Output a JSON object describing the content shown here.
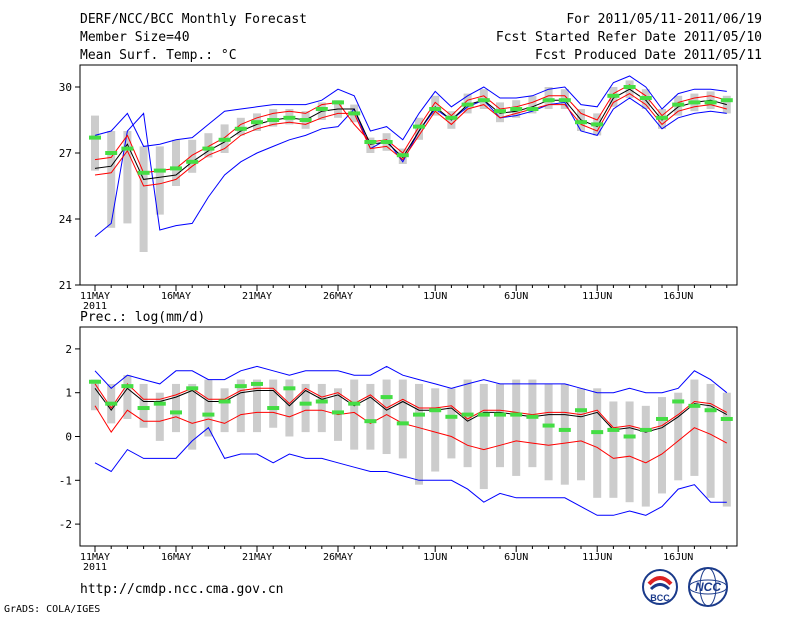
{
  "header": {
    "left": [
      "DERF/NCC/BCC Monthly Forecast",
      "Member Size=40",
      "Mean Surf. Temp.: °C"
    ],
    "right": [
      "For 2011/05/11-2011/06/19",
      "Fcst Started Refer Date 2011/05/10",
      "Fcst Produced Date 2011/05/11"
    ]
  },
  "precip_title": "Prec.: log(mm/d)",
  "url": "http://cmdp.ncc.cma.gov.cn",
  "footer": "GrADS: COLA/IGES",
  "logos": {
    "bcc": "BCC",
    "ncc": "NCC"
  },
  "colors": {
    "mean": "#000000",
    "percentile": "#ff0000",
    "extreme": "#0000ff",
    "box": "#cccccc",
    "marker": "#44dd44"
  },
  "chart_data": [
    {
      "type": "line",
      "title": "Mean Surf. Temp.: °C",
      "x": [
        "2011-05-11",
        "2011-05-12",
        "2011-05-13",
        "2011-05-14",
        "2011-05-15",
        "2011-05-16",
        "2011-05-17",
        "2011-05-18",
        "2011-05-19",
        "2011-05-20",
        "2011-05-21",
        "2011-05-22",
        "2011-05-23",
        "2011-05-24",
        "2011-05-25",
        "2011-05-26",
        "2011-05-27",
        "2011-05-28",
        "2011-05-29",
        "2011-05-30",
        "2011-05-31",
        "2011-06-01",
        "2011-06-02",
        "2011-06-03",
        "2011-06-04",
        "2011-06-05",
        "2011-06-06",
        "2011-06-07",
        "2011-06-08",
        "2011-06-09",
        "2011-06-10",
        "2011-06-11",
        "2011-06-12",
        "2011-06-13",
        "2011-06-14",
        "2011-06-15",
        "2011-06-16",
        "2011-06-17",
        "2011-06-18",
        "2011-06-19"
      ],
      "xticks": [
        "11MAY",
        "16MAY",
        "21MAY",
        "26MAY",
        "1JUN",
        "6JUN",
        "11JUN",
        "16JUN"
      ],
      "xtick_index": [
        0,
        5,
        10,
        15,
        21,
        26,
        31,
        36
      ],
      "year_label": "2011",
      "ylim": [
        21,
        31
      ],
      "yticks": [
        21,
        24,
        27,
        30
      ],
      "series": [
        {
          "name": "max",
          "color": "#0000ff",
          "values": [
            23.2,
            23.8,
            28.0,
            28.8,
            23.5,
            23.7,
            23.8,
            25.0,
            26.0,
            26.6,
            27.0,
            27.3,
            27.6,
            27.8,
            28.1,
            28.2,
            29.0,
            27.2,
            27.6,
            26.6,
            28.0,
            29.0,
            28.5,
            29.1,
            29.4,
            28.6,
            28.7,
            28.9,
            29.2,
            29.3,
            28.0,
            27.8,
            29.0,
            29.5,
            29.0,
            28.1,
            28.6,
            28.8,
            28.9,
            28.8
          ]
        },
        {
          "name": "min_env",
          "color": "#0000ff",
          "values": [
            27.8,
            28.0,
            28.8,
            27.3,
            27.4,
            27.6,
            27.7,
            28.3,
            28.9,
            29.0,
            29.1,
            29.2,
            29.2,
            29.2,
            29.4,
            29.9,
            29.6,
            28.0,
            28.2,
            27.6,
            28.8,
            29.8,
            29.1,
            29.6,
            30.0,
            29.5,
            29.5,
            29.6,
            29.9,
            30.0,
            29.2,
            29.1,
            30.2,
            30.5,
            30.0,
            29.0,
            29.7,
            29.9,
            29.9,
            29.8
          ]
        },
        {
          "name": "p_hi",
          "color": "#ff0000",
          "values": [
            26.7,
            26.8,
            27.8,
            26.1,
            26.2,
            26.3,
            26.9,
            27.3,
            27.7,
            28.3,
            28.6,
            28.8,
            28.9,
            28.8,
            29.2,
            29.3,
            28.3,
            27.5,
            27.6,
            27.0,
            28.2,
            29.3,
            28.7,
            29.4,
            29.6,
            29.0,
            29.1,
            29.3,
            29.6,
            29.6,
            28.8,
            28.5,
            29.7,
            30.1,
            29.6,
            28.7,
            29.3,
            29.5,
            29.6,
            29.4
          ]
        },
        {
          "name": "p_lo",
          "color": "#ff0000",
          "values": [
            26.0,
            26.1,
            27.1,
            25.5,
            25.6,
            25.8,
            26.4,
            26.9,
            27.2,
            27.8,
            28.1,
            28.3,
            28.4,
            28.3,
            28.6,
            28.8,
            28.8,
            27.2,
            27.3,
            26.7,
            27.8,
            28.9,
            28.3,
            29.0,
            29.2,
            28.6,
            28.8,
            29.0,
            29.2,
            29.2,
            28.3,
            28.0,
            29.3,
            29.7,
            29.2,
            28.3,
            28.9,
            29.1,
            29.2,
            29.0
          ]
        },
        {
          "name": "mean",
          "color": "#000000",
          "values": [
            26.3,
            26.4,
            27.4,
            25.8,
            25.9,
            26.0,
            26.6,
            27.1,
            27.5,
            28.0,
            28.3,
            28.5,
            28.6,
            28.5,
            28.9,
            29.0,
            29.0,
            27.4,
            27.5,
            26.8,
            28.0,
            29.1,
            28.5,
            29.2,
            29.4,
            28.8,
            28.9,
            29.1,
            29.4,
            29.4,
            28.5,
            28.2,
            29.5,
            29.9,
            29.4,
            28.5,
            29.1,
            29.3,
            29.4,
            29.2
          ]
        },
        {
          "name": "box_hi",
          "values": [
            28.7,
            28.0,
            28.0,
            27.3,
            27.3,
            27.6,
            27.6,
            27.9,
            28.3,
            28.6,
            28.8,
            29.0,
            29.0,
            28.9,
            29.3,
            29.4,
            29.2,
            27.7,
            27.9,
            27.2,
            28.6,
            29.6,
            28.9,
            29.7,
            29.9,
            29.3,
            29.4,
            29.6,
            30.0,
            29.9,
            29.0,
            28.8,
            30.0,
            30.3,
            29.9,
            29.0,
            29.6,
            29.7,
            29.8,
            29.6
          ]
        },
        {
          "name": "box_lo",
          "values": [
            26.2,
            23.6,
            23.8,
            22.5,
            24.2,
            25.5,
            26.1,
            26.8,
            27.0,
            27.8,
            28.0,
            28.2,
            28.3,
            28.1,
            28.5,
            28.6,
            28.4,
            27.0,
            27.1,
            26.5,
            27.6,
            28.7,
            28.1,
            28.8,
            29.0,
            28.4,
            28.6,
            28.8,
            29.0,
            29.0,
            28.0,
            27.8,
            29.1,
            29.5,
            29.0,
            28.1,
            28.7,
            28.9,
            29.0,
            28.8
          ]
        },
        {
          "name": "marker",
          "color": "#44dd44",
          "values": [
            27.7,
            27.0,
            27.2,
            26.1,
            26.2,
            26.3,
            26.6,
            27.2,
            27.6,
            28.1,
            28.4,
            28.5,
            28.6,
            28.5,
            29.0,
            29.3,
            28.8,
            27.5,
            27.5,
            26.9,
            28.2,
            29.0,
            28.6,
            29.2,
            29.4,
            28.9,
            29.0,
            29.0,
            29.4,
            29.4,
            28.4,
            28.3,
            29.6,
            30.0,
            29.5,
            28.6,
            29.2,
            29.3,
            29.3,
            29.4
          ]
        }
      ]
    },
    {
      "type": "line",
      "title": "Prec.: log(mm/d)",
      "x": [
        "2011-05-11",
        "2011-05-12",
        "2011-05-13",
        "2011-05-14",
        "2011-05-15",
        "2011-05-16",
        "2011-05-17",
        "2011-05-18",
        "2011-05-19",
        "2011-05-20",
        "2011-05-21",
        "2011-05-22",
        "2011-05-23",
        "2011-05-24",
        "2011-05-25",
        "2011-05-26",
        "2011-05-27",
        "2011-05-28",
        "2011-05-29",
        "2011-05-30",
        "2011-05-31",
        "2011-06-01",
        "2011-06-02",
        "2011-06-03",
        "2011-06-04",
        "2011-06-05",
        "2011-06-06",
        "2011-06-07",
        "2011-06-08",
        "2011-06-09",
        "2011-06-10",
        "2011-06-11",
        "2011-06-12",
        "2011-06-13",
        "2011-06-14",
        "2011-06-15",
        "2011-06-16",
        "2011-06-17",
        "2011-06-18",
        "2011-06-19"
      ],
      "xticks": [
        "11MAY",
        "16MAY",
        "21MAY",
        "26MAY",
        "1JUN",
        "6JUN",
        "11JUN",
        "16JUN"
      ],
      "xtick_index": [
        0,
        5,
        10,
        15,
        21,
        26,
        31,
        36
      ],
      "year_label": "2011",
      "ylim": [
        -2.5,
        2.5
      ],
      "yticks": [
        -2,
        -1,
        0,
        1,
        2
      ],
      "series": [
        {
          "name": "max",
          "color": "#0000ff",
          "values": [
            1.5,
            1.1,
            1.4,
            1.3,
            1.2,
            1.5,
            1.5,
            1.3,
            1.3,
            1.5,
            1.6,
            1.5,
            1.4,
            1.5,
            1.5,
            1.5,
            1.4,
            1.4,
            1.6,
            1.4,
            1.3,
            1.2,
            1.1,
            1.2,
            1.3,
            1.2,
            1.2,
            1.2,
            1.2,
            1.2,
            1.1,
            1.0,
            1.0,
            1.1,
            1.0,
            1.0,
            1.1,
            1.5,
            1.3,
            1.0
          ]
        },
        {
          "name": "min",
          "color": "#0000ff",
          "values": [
            -0.6,
            -0.8,
            -0.3,
            -0.5,
            -0.5,
            -0.5,
            -0.1,
            0.2,
            -0.5,
            -0.4,
            -0.4,
            -0.6,
            -0.4,
            -0.5,
            -0.5,
            -0.6,
            -0.7,
            -0.8,
            -0.8,
            -0.9,
            -1.0,
            -1.0,
            -1.0,
            -1.2,
            -1.5,
            -1.3,
            -1.4,
            -1.4,
            -1.4,
            -1.4,
            -1.6,
            -1.8,
            -1.8,
            -1.7,
            -1.8,
            -1.6,
            -1.2,
            -1.1,
            -1.5,
            -1.5
          ]
        },
        {
          "name": "p_lo",
          "color": "#ff0000",
          "values": [
            0.7,
            0.1,
            0.6,
            0.35,
            0.35,
            0.45,
            0.3,
            0.4,
            0.3,
            0.5,
            0.55,
            0.55,
            0.45,
            0.6,
            0.6,
            0.5,
            0.55,
            0.3,
            0.5,
            0.3,
            0.2,
            0.1,
            0.0,
            -0.2,
            -0.3,
            -0.2,
            -0.1,
            -0.15,
            -0.2,
            -0.15,
            -0.1,
            -0.25,
            -0.5,
            -0.45,
            -0.6,
            -0.4,
            -0.1,
            0.2,
            0.05,
            -0.15
          ]
        },
        {
          "name": "mean",
          "color": "#000000",
          "values": [
            1.1,
            0.6,
            1.1,
            0.8,
            0.8,
            0.9,
            1.05,
            0.8,
            0.8,
            1.0,
            1.05,
            1.05,
            0.7,
            1.05,
            0.85,
            0.95,
            0.7,
            0.9,
            0.6,
            0.8,
            0.6,
            0.6,
            0.65,
            0.35,
            0.55,
            0.55,
            0.5,
            0.45,
            0.5,
            0.5,
            0.45,
            0.55,
            0.15,
            0.2,
            0.1,
            0.2,
            0.45,
            0.75,
            0.7,
            0.5
          ]
        },
        {
          "name": "p_hi",
          "color": "#ff0000",
          "values": [
            1.2,
            0.65,
            1.2,
            0.85,
            0.85,
            0.95,
            1.1,
            0.85,
            0.85,
            1.05,
            1.1,
            1.1,
            0.75,
            1.1,
            0.9,
            1.0,
            0.75,
            0.95,
            0.65,
            0.85,
            0.65,
            0.65,
            0.7,
            0.4,
            0.6,
            0.6,
            0.55,
            0.5,
            0.55,
            0.55,
            0.5,
            0.6,
            0.2,
            0.25,
            0.15,
            0.25,
            0.5,
            0.8,
            0.75,
            0.55
          ]
        },
        {
          "name": "box_hi",
          "values": [
            1.3,
            1.2,
            1.4,
            1.2,
            1.0,
            1.2,
            1.2,
            1.3,
            1.1,
            1.3,
            1.3,
            1.3,
            1.3,
            1.2,
            1.2,
            1.1,
            1.3,
            1.2,
            1.3,
            1.3,
            1.2,
            1.1,
            1.1,
            1.3,
            1.2,
            1.2,
            1.3,
            1.3,
            1.2,
            1.2,
            1.1,
            1.1,
            0.8,
            0.8,
            0.7,
            0.9,
            1.0,
            1.3,
            1.2,
            1.0
          ]
        },
        {
          "name": "box_lo",
          "values": [
            0.6,
            0.3,
            0.4,
            0.2,
            -0.1,
            0.1,
            -0.3,
            0.0,
            0.1,
            0.1,
            0.1,
            0.2,
            0.0,
            0.1,
            0.1,
            -0.1,
            -0.3,
            -0.3,
            -0.4,
            -0.5,
            -1.1,
            -0.8,
            -0.5,
            -0.7,
            -1.2,
            -0.7,
            -0.9,
            -0.7,
            -1.0,
            -1.1,
            -1.0,
            -1.4,
            -1.4,
            -1.5,
            -1.6,
            -1.3,
            -1.0,
            -0.9,
            -1.4,
            -1.6
          ]
        },
        {
          "name": "marker",
          "color": "#44dd44",
          "values": [
            1.25,
            0.75,
            1.15,
            0.65,
            0.75,
            0.55,
            1.1,
            0.5,
            0.8,
            1.15,
            1.2,
            0.65,
            1.1,
            0.75,
            0.8,
            0.55,
            0.75,
            0.35,
            0.9,
            0.3,
            0.5,
            0.6,
            0.45,
            0.5,
            0.5,
            0.5,
            0.5,
            0.45,
            0.25,
            0.15,
            0.6,
            0.1,
            0.15,
            0.0,
            0.15,
            0.4,
            0.8,
            0.7,
            0.6,
            0.4
          ]
        }
      ]
    }
  ]
}
